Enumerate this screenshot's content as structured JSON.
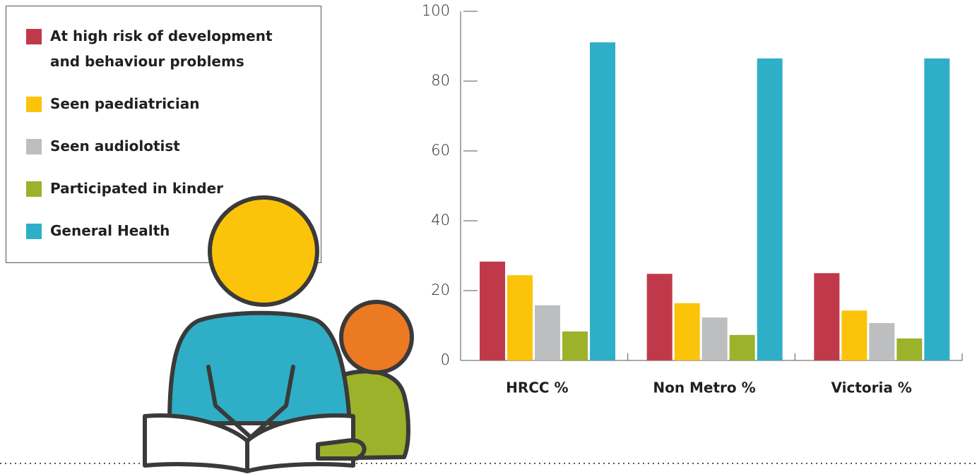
{
  "chart_data": {
    "type": "bar",
    "categories": [
      "HRCC %",
      "Non Metro %",
      "Victoria %"
    ],
    "series": [
      {
        "name": "At high risk of development and behaviour problems",
        "color": "#c0394b",
        "values": [
          28.3,
          24.8,
          25
        ]
      },
      {
        "name": "Seen paediatrician",
        "color": "#fcc30b",
        "values": [
          24.4,
          16.4,
          14.3
        ]
      },
      {
        "name": "Seen audiolotist",
        "color": "#bcbec0",
        "values": [
          15.8,
          12.3,
          10.7
        ]
      },
      {
        "name": "Participated in kinder",
        "color": "#9bb22a",
        "values": [
          8.3,
          7.3,
          6.3
        ]
      },
      {
        "name": "General Health",
        "color": "#2eafc7",
        "values": [
          91.1,
          86.5,
          86.5
        ]
      }
    ],
    "ylim": [
      0,
      100
    ],
    "yticks": [
      0,
      20,
      40,
      60,
      80,
      100
    ]
  }
}
